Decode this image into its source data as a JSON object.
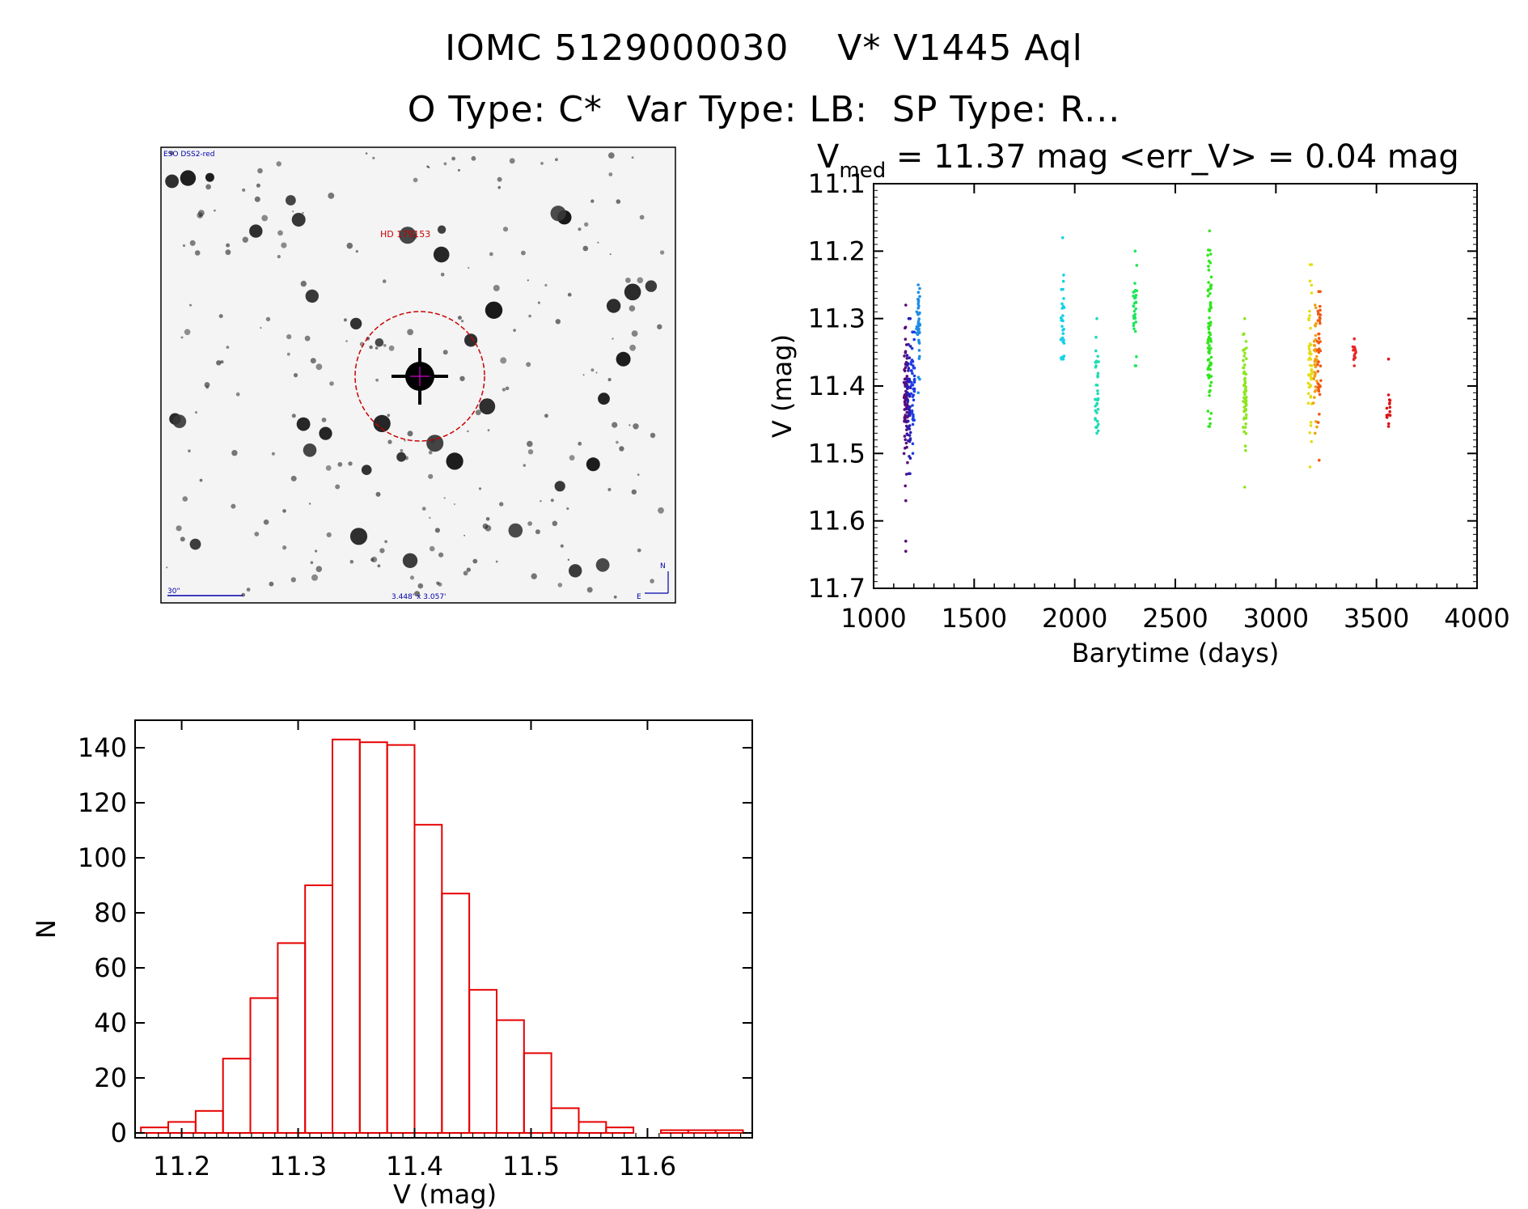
{
  "header": {
    "line1": "IOMC 5129000030    V* V1445 Aql",
    "line2": "O Type: C*  Var Type: LB:  SP Type: R..."
  },
  "image_panel": {
    "survey_label": "ESO DSS2-red",
    "object_label": "HD 179153",
    "scale_label": "30\"",
    "size_label": "3.448' x 3.057'",
    "compass_n": "N",
    "compass_e": "E",
    "marker_color": "#cc0000",
    "label_color": "#0000aa"
  },
  "chart_data": [
    {
      "type": "scatter",
      "title_v": "V",
      "title_sub": "med",
      "title_rest": " = 11.37 mag <err_V> = 0.04 mag",
      "xlabel": "Barytime (days)",
      "ylabel": "V (mag)",
      "xlim": [
        1000,
        4000
      ],
      "ylim": [
        11.1,
        11.7
      ],
      "y_inverted": true,
      "xticks": [
        1000,
        1500,
        2000,
        2500,
        3000,
        3500,
        4000
      ],
      "yticks": [
        11.1,
        11.2,
        11.3,
        11.4,
        11.5,
        11.6,
        11.7
      ],
      "ytick_labels": [
        "11.1",
        "11.2",
        "11.3",
        "11.4",
        "11.5",
        "11.6",
        "11.7"
      ],
      "groups": [
        {
          "x": 1160,
          "y_min": 11.28,
          "y_max": 11.57,
          "center": 11.42,
          "n": 70,
          "color": "#5a0a78"
        },
        {
          "x": 1175,
          "y_min": 11.3,
          "y_max": 11.53,
          "center": 11.41,
          "n": 55,
          "color": "#2a1eb4"
        },
        {
          "x": 1195,
          "y_min": 11.32,
          "y_max": 11.5,
          "center": 11.4,
          "n": 40,
          "color": "#1e3ce6"
        },
        {
          "x": 1222,
          "y_min": 11.25,
          "y_max": 11.41,
          "center": 11.31,
          "n": 40,
          "color": "#1e8ce6"
        },
        {
          "x": 1940,
          "y_min": 11.18,
          "y_max": 11.36,
          "center": 11.31,
          "n": 30,
          "color": "#14d2e6"
        },
        {
          "x": 2110,
          "y_min": 11.3,
          "y_max": 11.47,
          "center": 11.41,
          "n": 35,
          "color": "#1edcb4"
        },
        {
          "x": 2300,
          "y_min": 11.2,
          "y_max": 11.37,
          "center": 11.28,
          "n": 30,
          "color": "#1ee65a"
        },
        {
          "x": 2670,
          "y_min": 11.17,
          "y_max": 11.46,
          "center": 11.32,
          "n": 80,
          "color": "#32e61e"
        },
        {
          "x": 2845,
          "y_min": 11.3,
          "y_max": 11.55,
          "center": 11.41,
          "n": 60,
          "color": "#8ce61e"
        },
        {
          "x": 3170,
          "y_min": 11.22,
          "y_max": 11.52,
          "center": 11.37,
          "n": 45,
          "color": "#e6dc14"
        },
        {
          "x": 3195,
          "y_min": 11.28,
          "y_max": 11.47,
          "center": 11.37,
          "n": 35,
          "color": "#f0a014"
        },
        {
          "x": 3215,
          "y_min": 11.26,
          "y_max": 11.51,
          "center": 11.35,
          "n": 40,
          "color": "#f05a14"
        },
        {
          "x": 3390,
          "y_min": 11.33,
          "y_max": 11.37,
          "center": 11.35,
          "n": 14,
          "color": "#e62828"
        },
        {
          "x": 3560,
          "y_min": 11.36,
          "y_max": 11.46,
          "center": 11.42,
          "n": 14,
          "color": "#dc1414"
        }
      ],
      "outliers": [
        {
          "x": 1160,
          "y": 11.63,
          "color": "#5a0a78"
        },
        {
          "x": 1160,
          "y": 11.645,
          "color": "#5a0a78"
        }
      ]
    },
    {
      "type": "bar",
      "title": "",
      "xlabel": "V (mag)",
      "ylabel": "N",
      "xlim": [
        11.16,
        11.69
      ],
      "ylim": [
        0,
        150
      ],
      "xticks": [
        11.2,
        11.3,
        11.4,
        11.5,
        11.6
      ],
      "xtick_labels": [
        "11.2",
        "11.3",
        "11.4",
        "11.5",
        "11.6"
      ],
      "yticks": [
        0,
        20,
        40,
        60,
        80,
        100,
        120,
        140
      ],
      "ytick_labels": [
        "0",
        "20",
        "40",
        "60",
        "80",
        "100",
        "120",
        "140"
      ],
      "bin_width": 0.0235,
      "bin_start": 11.165,
      "values": [
        2,
        4,
        8,
        27,
        49,
        69,
        90,
        143,
        142,
        141,
        112,
        87,
        52,
        41,
        29,
        9,
        4,
        2,
        0,
        1,
        1,
        1
      ],
      "bar_color": "#e60000"
    }
  ]
}
